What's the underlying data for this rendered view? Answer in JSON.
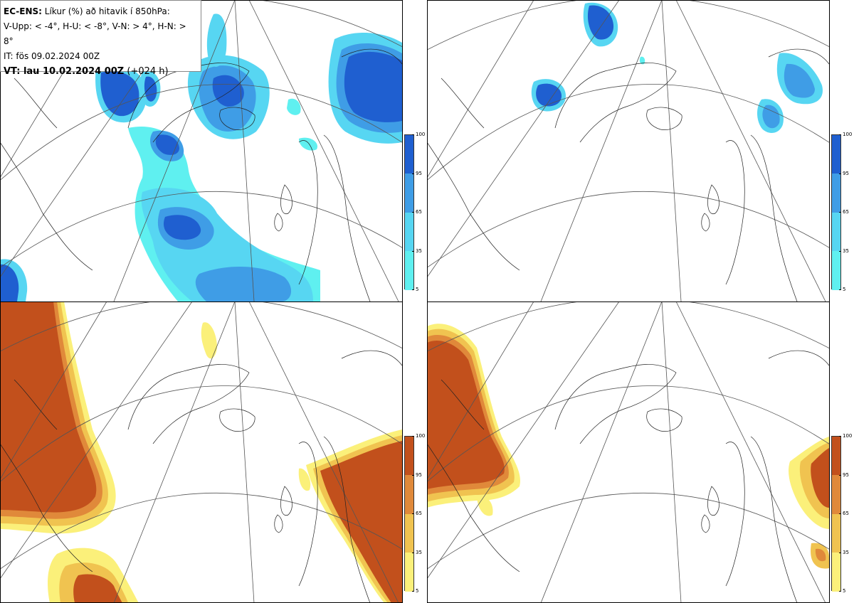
{
  "legend": {
    "model": "EC-ENS:",
    "title": "Líkur (%) að hitavik í 850hPa:",
    "categories": "V-Upp: < -4°, H-U: < -8°, V-N: > 4°, H-N: > 8°",
    "init_time": "IT: fös 09.02.2024 00Z",
    "valid_label": "VT: lau 10.02.2024 00Z",
    "lead": "(+024 h)"
  },
  "colorbar_ticks": [
    "100",
    "95",
    "65",
    "35",
    "5"
  ],
  "colors": {
    "blue_levels": [
      "#5ff0f0",
      "#57d6f2",
      "#3f9de6",
      "#1f5fd0"
    ],
    "orange_levels": [
      "#fbf07a",
      "#f0c350",
      "#e0893a",
      "#c2501c"
    ]
  },
  "panels": [
    {
      "name": "upper-left",
      "variable": "anomaly < -4°",
      "palette": "blue"
    },
    {
      "name": "upper-right",
      "variable": "anomaly < -8°",
      "palette": "blue"
    },
    {
      "name": "lower-left",
      "variable": "anomaly > 4°",
      "palette": "orange"
    },
    {
      "name": "lower-right",
      "variable": "anomaly > 8°",
      "palette": "orange"
    }
  ]
}
